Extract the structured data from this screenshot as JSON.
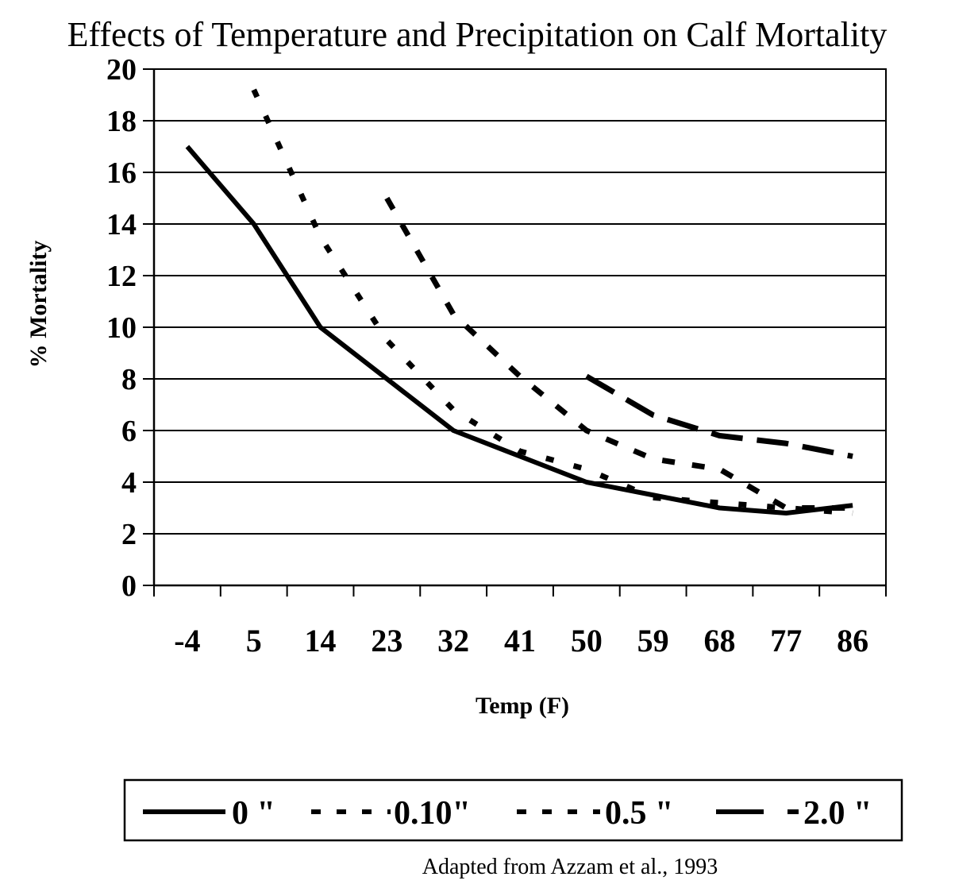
{
  "chart_data": {
    "type": "line",
    "title": "Effects of Temperature and Precipitation on Calf Mortality",
    "xlabel": "Temp (F)",
    "ylabel": "% Mortality",
    "categories": [
      "-4",
      "5",
      "14",
      "23",
      "32",
      "41",
      "50",
      "59",
      "68",
      "77",
      "86"
    ],
    "ylim": [
      0,
      20
    ],
    "yticks": [
      "0",
      "2",
      "4",
      "6",
      "8",
      "10",
      "12",
      "14",
      "16",
      "18",
      "20"
    ],
    "grid": "horizontal",
    "legend_position": "bottom",
    "series": [
      {
        "name": "0 \"",
        "style": "solid",
        "values": [
          17,
          14,
          10,
          8,
          6,
          5,
          4,
          3.5,
          3.0,
          2.8,
          3.1
        ]
      },
      {
        "name": "0.10\"",
        "style": "short-dash",
        "values": [
          null,
          19.2,
          13.5,
          9.5,
          6.8,
          5.2,
          4.5,
          3.4,
          3.2,
          3.0,
          2.8
        ]
      },
      {
        "name": "0.5 \"",
        "style": "medium-dash",
        "values": [
          null,
          null,
          null,
          15,
          10.5,
          8.1,
          6.0,
          4.9,
          4.5,
          3.0,
          3.0
        ]
      },
      {
        "name": "2.0 \"",
        "style": "long-dash",
        "values": [
          null,
          null,
          null,
          null,
          null,
          null,
          8.1,
          6.6,
          5.8,
          5.5,
          5.0
        ]
      }
    ],
    "source_note": "Adapted from Azzam et al., 1993"
  },
  "colors": {
    "line": "#000000",
    "grid": "#000000",
    "background": "#ffffff"
  }
}
